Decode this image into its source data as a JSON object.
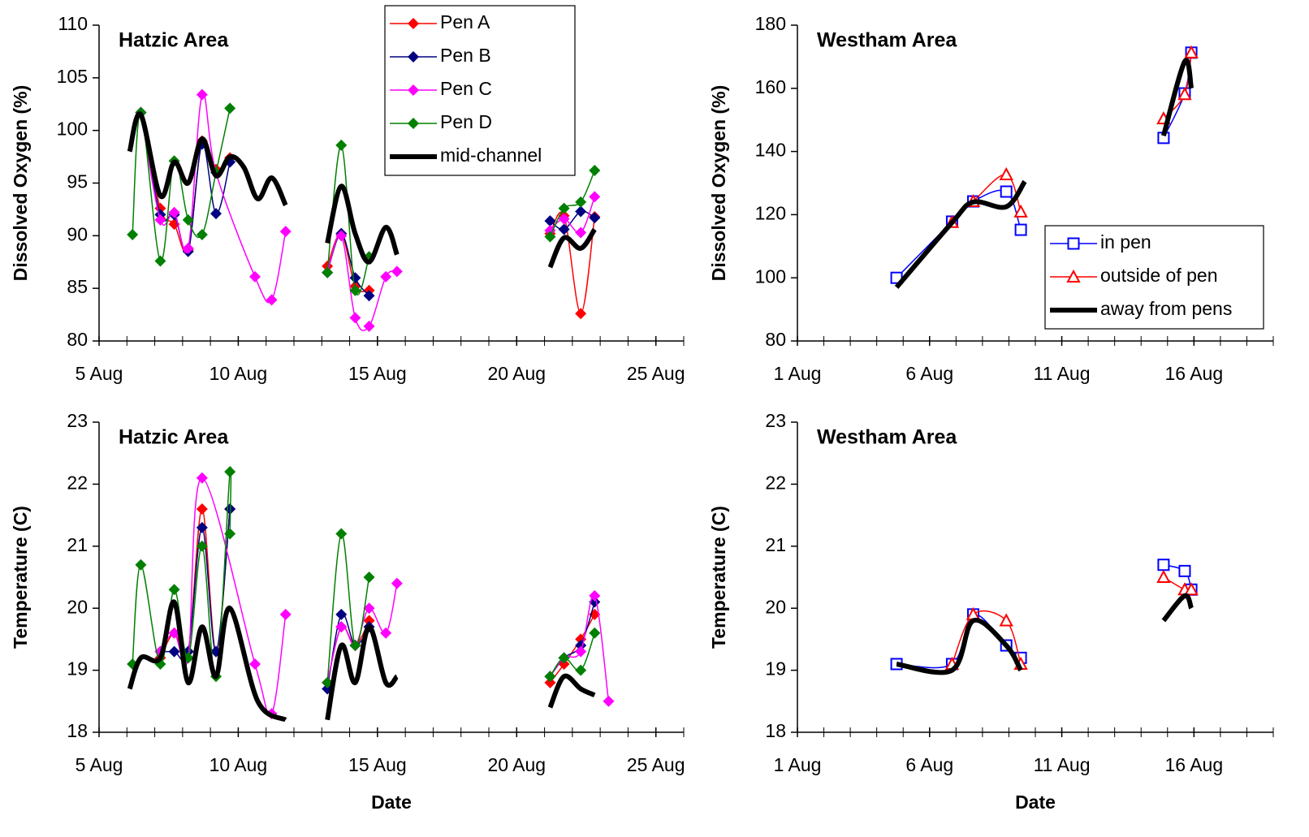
{
  "chart_data": [
    {
      "type": "line",
      "title": "Hatzic Area",
      "ylabel": "Dissolved Oxygen (%)",
      "xlim": [
        5,
        26
      ],
      "xticks": [
        {
          "value": 5,
          "label": "5 Aug"
        },
        {
          "value": 10,
          "label": "10 Aug"
        },
        {
          "value": 15,
          "label": "15 Aug"
        },
        {
          "value": 20,
          "label": "20 Aug"
        },
        {
          "value": 25,
          "label": "25 Aug"
        }
      ],
      "ylim": [
        80,
        110
      ],
      "yticks": [
        80,
        85,
        90,
        95,
        100,
        105,
        110
      ],
      "legend": "upper center",
      "series": [
        {
          "name": "Pen A",
          "color": "#ff0000",
          "marker": "diamond",
          "linewidth": 1.5,
          "x": [
            6.5,
            7.2,
            7.7,
            8.2,
            8.7,
            9.2,
            9.7,
            null,
            13.2,
            13.7,
            14.2,
            14.7,
            null,
            21.2,
            21.7,
            22.3,
            22.8
          ],
          "values": [
            101.7,
            92.6,
            91.1,
            88.7,
            99.0,
            96.3,
            97.4,
            null,
            87.1,
            90.2,
            85.2,
            84.8,
            null,
            90.2,
            91.9,
            82.6,
            91.8
          ]
        },
        {
          "name": "Pen B",
          "color": "#000080",
          "marker": "diamond",
          "linewidth": 1.5,
          "x": [
            6.5,
            7.2,
            7.7,
            8.2,
            8.7,
            9.2,
            9.7,
            null,
            13.2,
            13.7,
            14.2,
            14.7,
            null,
            21.2,
            21.7,
            22.3,
            22.8
          ],
          "values": [
            101.7,
            92.0,
            92.0,
            88.5,
            98.7,
            92.1,
            97.0,
            null,
            86.5,
            90.2,
            86.0,
            84.3,
            null,
            91.4,
            90.6,
            92.3,
            91.7
          ]
        },
        {
          "name": "Pen C",
          "color": "#ff00ff",
          "marker": "diamond",
          "linewidth": 1.5,
          "x": [
            6.5,
            7.2,
            7.7,
            8.2,
            8.7,
            9.2,
            10.6,
            11.2,
            11.7,
            null,
            13.2,
            13.7,
            14.2,
            14.7,
            15.3,
            15.7,
            null,
            21.2,
            21.7,
            22.3,
            22.8
          ],
          "values": [
            101.7,
            91.5,
            92.2,
            88.8,
            103.4,
            96.0,
            86.1,
            83.9,
            90.4,
            null,
            86.5,
            90.0,
            82.2,
            81.4,
            86.1,
            86.6,
            null,
            90.5,
            91.6,
            90.3,
            93.7
          ]
        },
        {
          "name": "Pen D",
          "color": "#008000",
          "marker": "diamond",
          "linewidth": 1.5,
          "x": [
            6.2,
            6.5,
            7.2,
            7.7,
            8.2,
            8.7,
            9.2,
            9.7,
            null,
            13.2,
            13.7,
            14.2,
            14.7,
            null,
            21.2,
            21.7,
            22.3,
            22.8
          ],
          "values": [
            90.1,
            101.7,
            87.6,
            97.1,
            91.5,
            90.1,
            96.0,
            102.1,
            null,
            86.5,
            98.6,
            84.8,
            88.0,
            null,
            89.9,
            92.6,
            93.2,
            96.2
          ]
        },
        {
          "name": "mid-channel",
          "color": "#000000",
          "marker": "none",
          "linewidth": 6,
          "x": [
            6.1,
            6.5,
            7.2,
            7.7,
            8.2,
            8.7,
            9.2,
            9.7,
            10.2,
            10.7,
            11.2,
            11.7,
            null,
            13.2,
            13.7,
            14.2,
            14.7,
            15.3,
            15.7,
            null,
            21.2,
            21.7,
            22.3,
            22.8
          ],
          "values": [
            98.0,
            101.5,
            93.8,
            97.0,
            95.0,
            99.2,
            95.7,
            97.5,
            96.5,
            93.5,
            95.5,
            92.9,
            null,
            89.3,
            94.7,
            90.2,
            87.5,
            90.8,
            88.2,
            null,
            87.0,
            89.8,
            88.8,
            90.6
          ]
        }
      ]
    },
    {
      "type": "line",
      "title": "Westham Area",
      "ylabel": "Dissolved Oxygen (%)",
      "xlim": [
        1,
        19
      ],
      "xticks": [
        {
          "value": 1,
          "label": "1 Aug"
        },
        {
          "value": 6,
          "label": "6 Aug"
        },
        {
          "value": 11,
          "label": "11 Aug"
        },
        {
          "value": 16,
          "label": "16 Aug"
        }
      ],
      "ylim": [
        80,
        180
      ],
      "yticks": [
        80,
        100,
        120,
        140,
        160,
        180
      ],
      "legend": "right",
      "series": [
        {
          "name": "in pen",
          "color": "#0000ff",
          "marker": "square",
          "linewidth": 1.5,
          "x": [
            4.75,
            6.85,
            7.65,
            8.9,
            9.45,
            null,
            14.85,
            15.65,
            15.9
          ],
          "values": [
            100.0,
            117.8,
            124.2,
            127.3,
            115.2,
            null,
            144.3,
            158.4,
            171.3
          ]
        },
        {
          "name": "outside of pen",
          "color": "#ff0000",
          "marker": "triangle",
          "linewidth": 1.5,
          "x": [
            6.85,
            7.65,
            8.9,
            9.45,
            null,
            14.85,
            15.65,
            15.9
          ],
          "values": [
            117.6,
            124.2,
            132.7,
            120.9,
            null,
            150.4,
            158.1,
            171.3
          ]
        },
        {
          "name": "away from pens",
          "color": "#000000",
          "marker": "none",
          "linewidth": 6,
          "x": [
            4.75,
            6.85,
            7.65,
            8.9,
            9.6,
            null,
            14.85,
            15.65,
            15.9
          ],
          "values": [
            97.0,
            117.5,
            124.0,
            122.5,
            130.5,
            null,
            145.0,
            168.5,
            160.0
          ]
        }
      ]
    },
    {
      "type": "line",
      "title": "Hatzic Area",
      "ylabel": "Temperature (C)",
      "xlabel": "Date",
      "xlim": [
        5,
        26
      ],
      "xticks": [
        {
          "value": 5,
          "label": "5 Aug"
        },
        {
          "value": 10,
          "label": "10 Aug"
        },
        {
          "value": 15,
          "label": "15 Aug"
        },
        {
          "value": 20,
          "label": "20 Aug"
        },
        {
          "value": 25,
          "label": "25 Aug"
        }
      ],
      "ylim": [
        18,
        23
      ],
      "yticks": [
        18,
        19,
        20,
        21,
        22,
        23
      ],
      "series": [
        {
          "color": "#ff0000",
          "marker": "diamond",
          "linewidth": 1.5,
          "x": [
            7.2,
            7.7,
            8.2,
            8.7,
            9.2,
            9.7,
            null,
            13.2,
            13.7,
            14.2,
            14.7,
            null,
            21.2,
            21.7,
            22.3,
            22.8
          ],
          "values": [
            19.2,
            19.6,
            19.3,
            21.6,
            19.3,
            21.6,
            null,
            18.8,
            19.7,
            19.4,
            19.8,
            null,
            18.8,
            19.1,
            19.5,
            19.9
          ]
        },
        {
          "color": "#000080",
          "marker": "diamond",
          "linewidth": 1.5,
          "x": [
            7.2,
            7.7,
            8.2,
            8.7,
            9.2,
            9.7,
            null,
            13.2,
            13.7,
            14.2,
            14.7,
            null,
            21.2,
            21.7,
            22.3,
            22.8
          ],
          "values": [
            19.3,
            19.3,
            19.3,
            21.3,
            19.3,
            21.6,
            null,
            18.7,
            19.9,
            19.4,
            19.7,
            null,
            18.9,
            19.2,
            19.4,
            20.1
          ]
        },
        {
          "color": "#ff00ff",
          "marker": "diamond",
          "linewidth": 1.5,
          "x": [
            7.2,
            7.7,
            8.2,
            8.7,
            10.6,
            11.2,
            11.7,
            null,
            13.2,
            13.7,
            14.2,
            14.7,
            15.3,
            15.7,
            null,
            21.2,
            21.7,
            22.3,
            22.8,
            23.3
          ],
          "values": [
            19.3,
            19.6,
            19.2,
            22.1,
            19.1,
            18.3,
            19.9,
            null,
            18.8,
            19.7,
            19.4,
            20.0,
            19.6,
            20.4,
            null,
            18.9,
            19.2,
            19.3,
            20.2,
            18.5
          ]
        },
        {
          "color": "#008000",
          "marker": "diamond",
          "linewidth": 1.5,
          "x": [
            6.2,
            6.5,
            7.2,
            7.7,
            8.2,
            8.7,
            9.2,
            9.7,
            9.7,
            null,
            13.2,
            13.7,
            14.2,
            14.7,
            null,
            21.2,
            21.7,
            22.3,
            22.8
          ],
          "values": [
            19.1,
            20.7,
            19.1,
            20.3,
            19.2,
            21.0,
            18.9,
            22.2,
            21.2,
            null,
            18.8,
            21.2,
            19.4,
            20.5,
            null,
            18.9,
            19.2,
            19.0,
            19.6
          ]
        },
        {
          "color": "#000000",
          "marker": "none",
          "linewidth": 6,
          "x": [
            6.1,
            6.5,
            7.2,
            7.7,
            8.2,
            8.7,
            9.2,
            9.7,
            10.7,
            11.7,
            null,
            13.2,
            13.7,
            14.2,
            14.7,
            15.3,
            15.7,
            null,
            21.2,
            21.7,
            22.3,
            22.8
          ],
          "values": [
            18.7,
            19.2,
            19.2,
            20.1,
            18.8,
            19.7,
            18.9,
            20.0,
            18.5,
            18.2,
            null,
            18.2,
            19.4,
            18.8,
            19.7,
            18.8,
            18.9,
            null,
            18.4,
            18.9,
            18.7,
            18.6
          ]
        }
      ]
    },
    {
      "type": "line",
      "title": "Westham Area",
      "ylabel": "Temperature (C)",
      "xlabel": "Date",
      "xlim": [
        1,
        19
      ],
      "xticks": [
        {
          "value": 1,
          "label": "1 Aug"
        },
        {
          "value": 6,
          "label": "6 Aug"
        },
        {
          "value": 11,
          "label": "11 Aug"
        },
        {
          "value": 16,
          "label": "16 Aug"
        }
      ],
      "ylim": [
        18,
        23
      ],
      "yticks": [
        18,
        19,
        20,
        21,
        22,
        23
      ],
      "series": [
        {
          "color": "#0000ff",
          "marker": "square",
          "linewidth": 1.5,
          "x": [
            4.75,
            6.85,
            7.65,
            8.9,
            9.45,
            null,
            14.85,
            15.65,
            15.9
          ],
          "values": [
            19.1,
            19.1,
            19.9,
            19.4,
            19.2,
            null,
            20.7,
            20.6,
            20.3
          ]
        },
        {
          "color": "#ff0000",
          "marker": "triangle",
          "linewidth": 1.5,
          "x": [
            6.85,
            7.65,
            8.9,
            9.45,
            null,
            14.85,
            15.65,
            15.9
          ],
          "values": [
            19.1,
            19.9,
            19.8,
            19.1,
            null,
            20.5,
            20.3,
            20.3
          ]
        },
        {
          "color": "#000000",
          "marker": "none",
          "linewidth": 6,
          "x": [
            4.75,
            6.85,
            7.65,
            8.9,
            9.45,
            null,
            14.85,
            15.65,
            15.9
          ],
          "values": [
            19.1,
            19.0,
            19.8,
            19.4,
            19.0,
            null,
            19.8,
            20.2,
            20.0
          ]
        }
      ]
    }
  ]
}
